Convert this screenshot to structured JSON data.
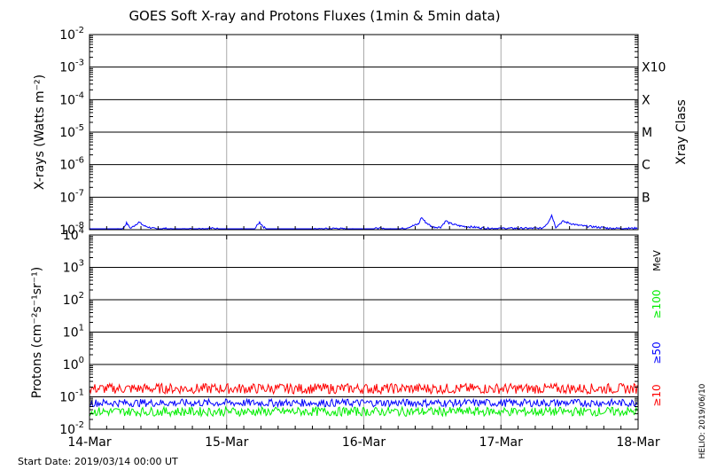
{
  "chart_data": [
    {
      "type": "line",
      "title": "GOES Soft X-ray and Protons Fluxes   (1min & 5min data)",
      "ylabel": "X-rays (Watts m⁻²)",
      "yscale": "log",
      "ylim": [
        1e-08,
        0.01
      ],
      "ytick_labels": [
        {
          "base": "10",
          "exp": "-2"
        },
        {
          "base": "10",
          "exp": "-3"
        },
        {
          "base": "10",
          "exp": "-4"
        },
        {
          "base": "10",
          "exp": "-5"
        },
        {
          "base": "10",
          "exp": "-6"
        },
        {
          "base": "10",
          "exp": "-7"
        },
        {
          "base": "10",
          "exp": "-8"
        }
      ],
      "right_axis_label": "Xray Class",
      "class_labels": [
        "X10",
        "X",
        "M",
        "C",
        "B"
      ],
      "grid": true,
      "series": [
        {
          "color": "#0000ff",
          "x_days": [
            0,
            0.2,
            0.24,
            0.27,
            0.3,
            0.36,
            0.4,
            0.5,
            0.55,
            0.6,
            0.9,
            1.0,
            1.2,
            1.24,
            1.27,
            1.3,
            1.36,
            1.45,
            1.6,
            1.8,
            1.9,
            2.0,
            2.1,
            2.2,
            2.3,
            2.4,
            2.42,
            2.45,
            2.5,
            2.56,
            2.6,
            2.62,
            2.7,
            2.8,
            2.9,
            3.0,
            3.1,
            3.15,
            3.25,
            3.3,
            3.34,
            3.37,
            3.4,
            3.45,
            3.55,
            3.6,
            3.7,
            3.8,
            3.9,
            4.0
          ],
          "values": [
            1e-08,
            1e-08,
            1e-08,
            1.6e-08,
            1.1e-08,
            1.7e-08,
            1.3e-08,
            1e-08,
            1.1e-08,
            1e-08,
            1.1e-08,
            1e-08,
            1e-08,
            1.7e-08,
            1.2e-08,
            1e-08,
            1e-08,
            1e-08,
            1e-08,
            1.1e-08,
            1e-08,
            1e-08,
            1.1e-08,
            1e-08,
            1.1e-08,
            1.5e-08,
            2.4e-08,
            1.7e-08,
            1.2e-08,
            1.2e-08,
            1.9e-08,
            1.6e-08,
            1.3e-08,
            1.2e-08,
            1.1e-08,
            1.1e-08,
            1.1e-08,
            1.1e-08,
            1.1e-08,
            1.1e-08,
            1.6e-08,
            2.8e-08,
            1.2e-08,
            1.8e-08,
            1.4e-08,
            1.3e-08,
            1.2e-08,
            1.1e-08,
            1.1e-08,
            1.1e-08
          ]
        }
      ]
    },
    {
      "type": "line",
      "ylabel": "Protons (cm⁻²s⁻¹sr⁻¹)",
      "yscale": "log",
      "ylim": [
        0.01,
        10000
      ],
      "ytick_labels": [
        {
          "base": "10",
          "exp": "4"
        },
        {
          "base": "10",
          "exp": "3"
        },
        {
          "base": "10",
          "exp": "2"
        },
        {
          "base": "10",
          "exp": "1"
        },
        {
          "base": "10",
          "exp": "0"
        },
        {
          "base": "10",
          "exp": "-1"
        },
        {
          "base": "10",
          "exp": "-2"
        }
      ],
      "right_axis_label": "MeV",
      "threshold": 10,
      "grid": true,
      "series": [
        {
          "name": "≥10",
          "color": "#ff0000",
          "typical_value": 0.18
        },
        {
          "name": "≥50",
          "color": "#0000ff",
          "typical_value": 0.065
        },
        {
          "name": "≥100",
          "color": "#00ee00",
          "typical_value": 0.035
        }
      ]
    }
  ],
  "x_axis": {
    "ticks": [
      "14-Mar",
      "15-Mar",
      "16-Mar",
      "17-Mar",
      "18-Mar"
    ]
  },
  "footer": {
    "start_date": "Start Date: 2019/03/14 00:00 UT",
    "side_note": "HELIO: 2019/06/10"
  },
  "colors": {
    "grid_major": "#000000",
    "grid_day": "#aaaaaa"
  }
}
